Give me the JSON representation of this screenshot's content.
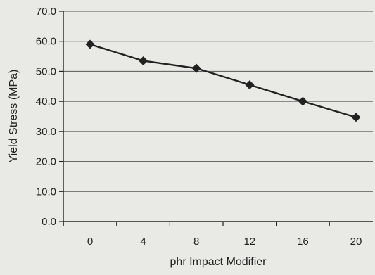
{
  "chart_data": {
    "type": "line",
    "xlabel": "phr Impact Modifier",
    "ylabel": "Yield Stress (MPa)",
    "x_ticks": [
      "0",
      "4",
      "8",
      "12",
      "16",
      "20"
    ],
    "y_ticks": [
      "0.0",
      "10.0",
      "20.0",
      "30.0",
      "40.0",
      "50.0",
      "60.0",
      "70.0"
    ],
    "ylim": [
      0,
      70
    ],
    "grid": true,
    "series": [
      {
        "marker": "diamond",
        "x": [
          0,
          4,
          8,
          12,
          16,
          20
        ],
        "y": [
          59.0,
          53.5,
          51.0,
          45.5,
          40.0,
          34.7
        ]
      }
    ],
    "colors": {
      "line": "#222222",
      "grid": "#555555",
      "background": "#e9e9e6"
    }
  }
}
